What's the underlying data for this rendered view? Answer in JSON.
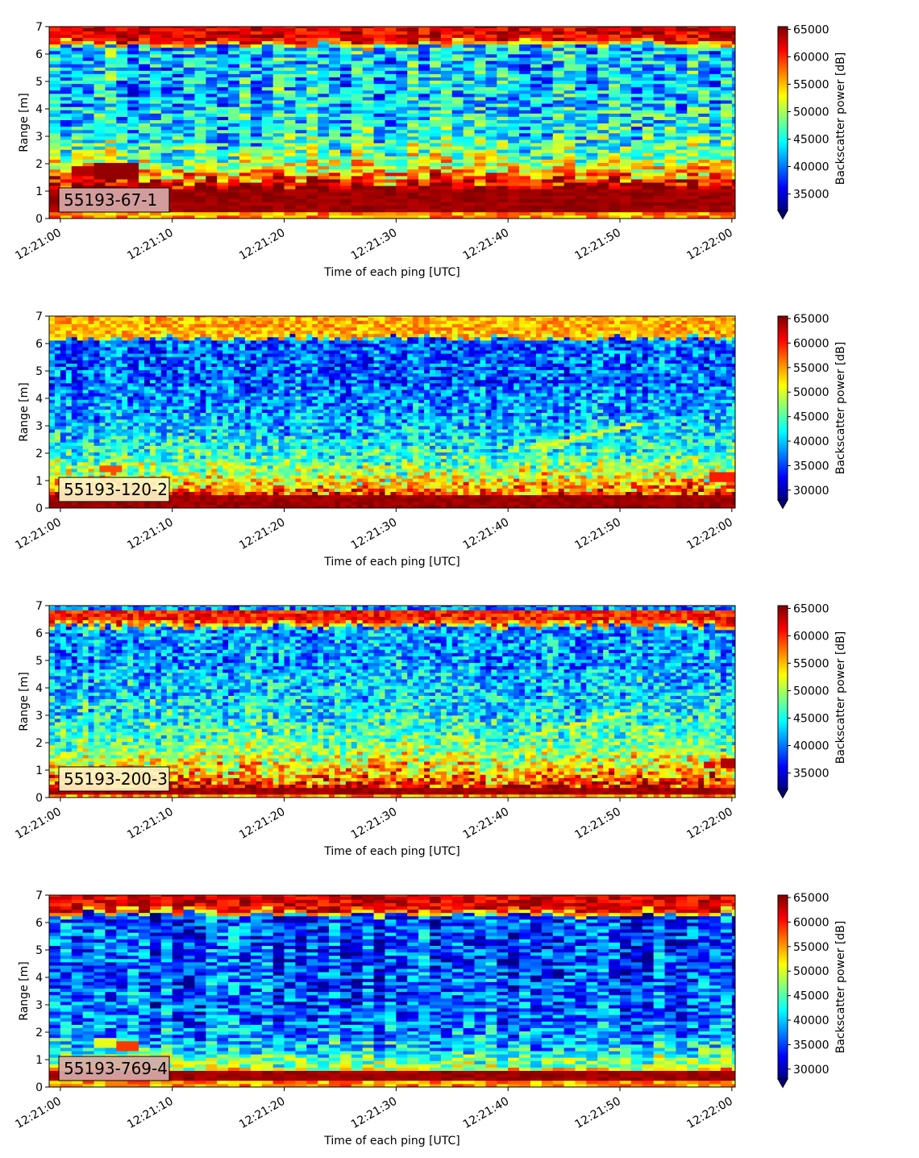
{
  "chart_data": [
    {
      "type": "heatmap",
      "label_box": "55193-67-1",
      "label_box_color": "#d8a9a9",
      "xlabel": "Time of each ping [UTC]",
      "ylabel": "Range [m]",
      "xticks": [
        "12:21:00",
        "12:21:10",
        "12:21:20",
        "12:21:30",
        "12:21:40",
        "12:21:50",
        "12:22:00"
      ],
      "xlim_seconds": [
        -1,
        60.3
      ],
      "ylim": [
        0,
        7
      ],
      "yticks": [
        0,
        1,
        2,
        3,
        4,
        5,
        6,
        7
      ],
      "colorbar_label": "Backscatter power [dB]",
      "colormap": "jet",
      "clim": [
        32000,
        65500
      ],
      "colorbar_ticks": [
        35000,
        40000,
        45000,
        50000,
        55000,
        60000,
        65000
      ],
      "colorbar_extend_min": true,
      "features": {
        "near_band": [
          0.2,
          1.1
        ],
        "near_band_strength": 1.0,
        "near_glow_top": 1.55,
        "glow_strength": 0.72,
        "glow_decay": 0.85,
        "surface_band": [
          6.45,
          7.0
        ],
        "surface_strength": 1.0,
        "mid_level": 0.33,
        "noise": 0.2,
        "column_noise": 0.14,
        "cell_width_s": 1.0,
        "blobs": [
          {
            "t0": 1,
            "t1": 3.5,
            "r0": 1.55,
            "r1": 1.95,
            "v": 0.95
          },
          {
            "t0": 3.5,
            "t1": 6.5,
            "r0": 1.45,
            "r1": 2.05,
            "v": 0.98
          }
        ],
        "streaks": [
          {
            "t0": 41,
            "t1": 52,
            "r0": 2.2,
            "r1": 3.5,
            "v": 0.5
          }
        ]
      }
    },
    {
      "type": "heatmap",
      "label_box": "55193-120-2",
      "label_box_color": "#fff4c6",
      "xlabel": "Time of each ping [UTC]",
      "ylabel": "Range [m]",
      "xticks": [
        "12:21:00",
        "12:21:10",
        "12:21:20",
        "12:21:30",
        "12:21:40",
        "12:21:50",
        "12:22:00"
      ],
      "xlim_seconds": [
        -1,
        60.3
      ],
      "ylim": [
        0,
        7
      ],
      "yticks": [
        0,
        1,
        2,
        3,
        4,
        5,
        6,
        7
      ],
      "colorbar_label": "Backscatter power [dB]",
      "colormap": "jet",
      "clim": [
        28000,
        65500
      ],
      "colorbar_ticks": [
        30000,
        35000,
        40000,
        45000,
        50000,
        55000,
        60000,
        65000
      ],
      "colorbar_extend_min": true,
      "features": {
        "near_band": [
          0.05,
          0.45
        ],
        "near_band_strength": 1.0,
        "near_glow_top": 2.0,
        "glow_strength": 0.62,
        "glow_decay": 1.4,
        "surface_band": [
          6.35,
          7.0
        ],
        "surface_strength": 0.8,
        "mid_level": 0.22,
        "noise": 0.16,
        "column_noise": 0.08,
        "cell_width_s": 0.5,
        "blobs": [
          {
            "t0": 58,
            "t1": 60.3,
            "r0": 1.0,
            "r1": 1.3,
            "v": 0.85
          },
          {
            "t0": 3.5,
            "t1": 5.5,
            "r0": 1.35,
            "r1": 1.5,
            "v": 0.8
          }
        ],
        "streaks": [
          {
            "t0": 42,
            "t1": 52,
            "r0": 2.2,
            "r1": 3.1,
            "v": 0.55
          }
        ]
      }
    },
    {
      "type": "heatmap",
      "label_box": "55193-200-3",
      "label_box_color": "#fff4c6",
      "xlabel": "Time of each ping [UTC]",
      "ylabel": "Range [m]",
      "xticks": [
        "12:21:00",
        "12:21:10",
        "12:21:20",
        "12:21:30",
        "12:21:40",
        "12:21:50",
        "12:22:00"
      ],
      "xlim_seconds": [
        -1,
        60.3
      ],
      "ylim": [
        0,
        7
      ],
      "yticks": [
        0,
        1,
        2,
        3,
        4,
        5,
        6,
        7
      ],
      "colorbar_label": "Backscatter power [dB]",
      "colormap": "jet",
      "clim": [
        32000,
        65500
      ],
      "colorbar_ticks": [
        35000,
        40000,
        45000,
        50000,
        55000,
        60000,
        65000
      ],
      "colorbar_extend_min": true,
      "features": {
        "near_band": [
          0.1,
          0.35
        ],
        "near_band_strength": 1.0,
        "near_glow_top": 2.2,
        "glow_strength": 0.62,
        "glow_decay": 1.5,
        "surface_band": [
          6.4,
          6.8
        ],
        "surface_strength": 0.95,
        "mid_level": 0.28,
        "noise": 0.17,
        "column_noise": 0.08,
        "cell_width_s": 0.5,
        "blobs": [
          {
            "t0": 59,
            "t1": 60.3,
            "r0": 1.1,
            "r1": 1.4,
            "v": 0.95
          },
          {
            "t0": 57.5,
            "t1": 58.5,
            "r0": 1.1,
            "r1": 1.3,
            "v": 0.9
          }
        ],
        "streaks": [
          {
            "t0": 42,
            "t1": 51,
            "r0": 2.3,
            "r1": 3.1,
            "v": 0.55
          }
        ]
      }
    },
    {
      "type": "heatmap",
      "label_box": "55193-769-4",
      "label_box_color": "#d8a9a9",
      "xlabel": "Time of each ping [UTC]",
      "ylabel": "Range [m]",
      "xticks": [
        "12:21:00",
        "12:21:10",
        "12:21:20",
        "12:21:30",
        "12:21:40",
        "12:21:50",
        "12:22:00"
      ],
      "xlim_seconds": [
        -1,
        60.3
      ],
      "ylim": [
        0,
        7
      ],
      "yticks": [
        0,
        1,
        2,
        3,
        4,
        5,
        6,
        7
      ],
      "colorbar_label": "Backscatter power [dB]",
      "colormap": "jet",
      "clim": [
        28000,
        65500
      ],
      "colorbar_ticks": [
        30000,
        35000,
        40000,
        45000,
        50000,
        55000,
        60000,
        65000
      ],
      "colorbar_extend_min": true,
      "features": {
        "near_band": [
          0.25,
          0.6
        ],
        "near_band_strength": 1.0,
        "near_glow_top": 1.6,
        "glow_strength": 0.45,
        "glow_decay": 0.8,
        "surface_band": [
          6.45,
          7.0
        ],
        "surface_strength": 1.0,
        "mid_level": 0.2,
        "noise": 0.18,
        "column_noise": 0.12,
        "cell_width_s": 1.0,
        "blobs": [
          {
            "t0": 3.5,
            "t1": 4.5,
            "r0": 1.5,
            "r1": 1.85,
            "v": 0.6
          },
          {
            "t0": 5.5,
            "t1": 6.5,
            "r0": 1.35,
            "r1": 1.7,
            "v": 0.82
          },
          {
            "t0": 57,
            "t1": 58,
            "r0": 1.2,
            "r1": 1.45,
            "v": 0.58
          }
        ],
        "streaks": []
      }
    }
  ]
}
